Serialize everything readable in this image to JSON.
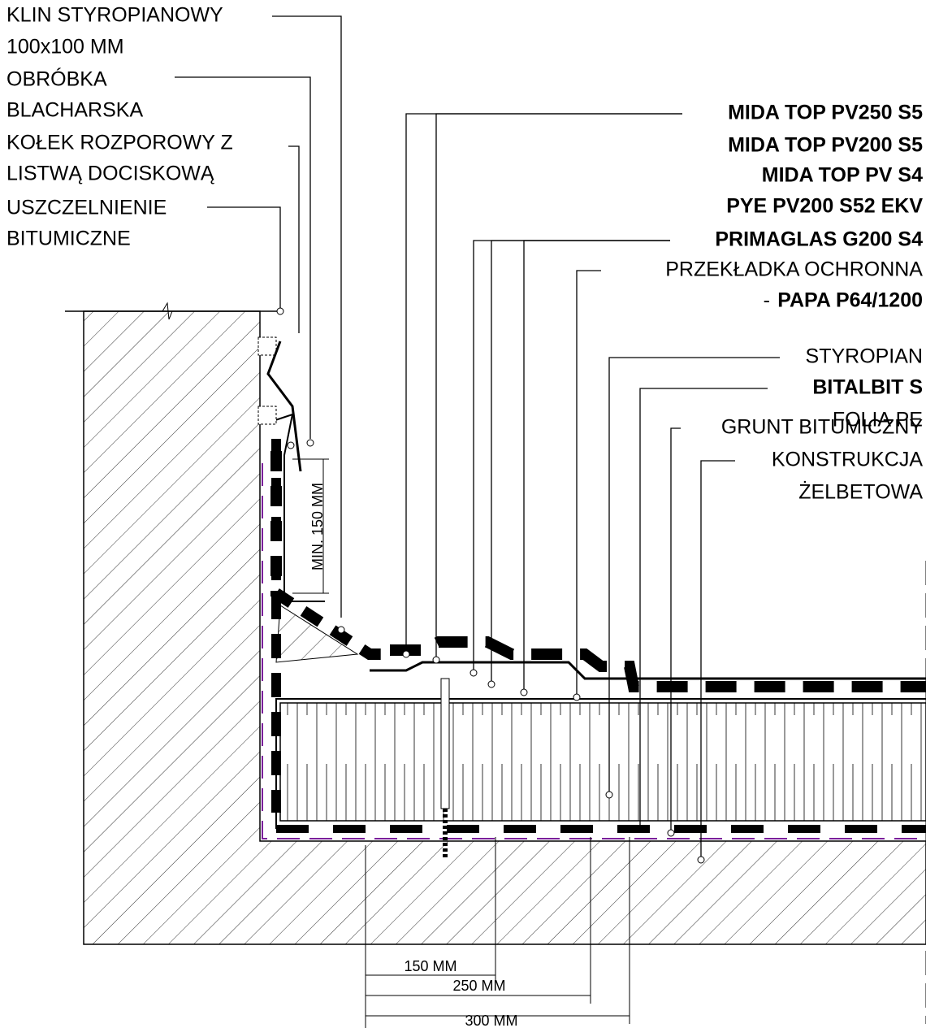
{
  "labels_left": [
    "KLIN STYROPIANOWY",
    "100x100 MM",
    "OBRÓBKA",
    "BLACHARSKA",
    "KOŁEK ROZPOROWY Z",
    "LISTWĄ DOCISKOWĄ",
    "USZCZELNIENIE",
    "BITUMICZNE"
  ],
  "labels_right": [
    "MIDA TOP PV250 S5",
    "MIDA TOP PV200 S5",
    "MIDA TOP PV S4",
    "PYE PV200 S52 EKV",
    "PRIMAGLAS G200 S4",
    "PRZEKŁADKA OCHRONNA",
    "-",
    "PAPA P64/1200",
    "STYROPIAN",
    "BITALBIT S",
    "FOLIA PE",
    "GRUNT BITUMICZNY",
    "KONSTRUKCJA",
    "ŻELBETOWA"
  ],
  "dimensions": [
    "MIN. 150 MM",
    "150 MM",
    "250 MM",
    "300 MM"
  ]
}
